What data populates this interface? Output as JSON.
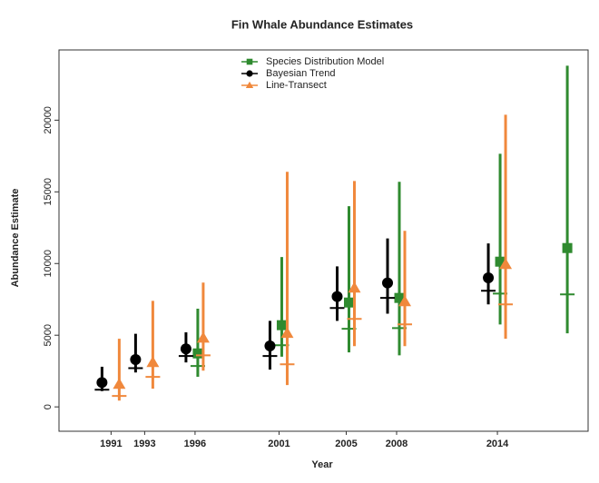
{
  "chart_data": {
    "type": "errorbar",
    "title": "Fin Whale Abundance Estimates",
    "x_label": "Year",
    "y_label": "Abundance Estimate",
    "xlim": [
      1987.9,
      2019.4
    ],
    "ylim": [
      -1700,
      24900
    ],
    "xticks": [
      1991,
      1993,
      1996,
      2001,
      2005,
      2008,
      2014
    ],
    "yticks": [
      0,
      5000,
      10000,
      15000,
      20000
    ],
    "legend_position": "top",
    "series": [
      {
        "name": "Species Distribution Model",
        "color": "#2f8a2f",
        "marker": "square",
        "x": [
          1996,
          2001,
          2005,
          2008,
          2014,
          2018
        ],
        "values": [
          3730,
          5700,
          7280,
          7600,
          10130,
          11080
        ],
        "ci_low": [
          2100,
          3500,
          3800,
          3600,
          5750,
          5130
        ],
        "ci_high": [
          6850,
          10450,
          14000,
          15700,
          17660,
          23800
        ],
        "dash": [
          2850,
          4300,
          5450,
          5500,
          7900,
          7850
        ]
      },
      {
        "name": "Bayesian Trend",
        "color": "#000000",
        "marker": "circle",
        "x": [
          1991,
          1993,
          1996,
          2001,
          2005,
          2008,
          2014
        ],
        "values": [
          1700,
          3300,
          4050,
          4250,
          7700,
          8650,
          9000
        ],
        "ci_low": [
          1100,
          2400,
          3100,
          2600,
          6000,
          6500,
          7150
        ],
        "ci_high": [
          2800,
          5100,
          5200,
          6000,
          9800,
          11750,
          11400
        ],
        "dash": [
          1200,
          2700,
          3550,
          3550,
          6900,
          7600,
          8100
        ]
      },
      {
        "name": "Line-Transect",
        "color": "#f0883c",
        "marker": "triangle",
        "x": [
          1991,
          1993,
          1996,
          2001,
          2005,
          2008,
          2014
        ],
        "values": [
          1580,
          3100,
          4800,
          5130,
          8290,
          7340,
          9940
        ],
        "ci_low": [
          440,
          1270,
          2530,
          1520,
          4240,
          4240,
          4750
        ],
        "ci_high": [
          4750,
          7400,
          8670,
          16400,
          15760,
          12280,
          20380
        ],
        "dash": [
          760,
          2090,
          3600,
          2970,
          6140,
          5760,
          7150
        ]
      }
    ]
  }
}
